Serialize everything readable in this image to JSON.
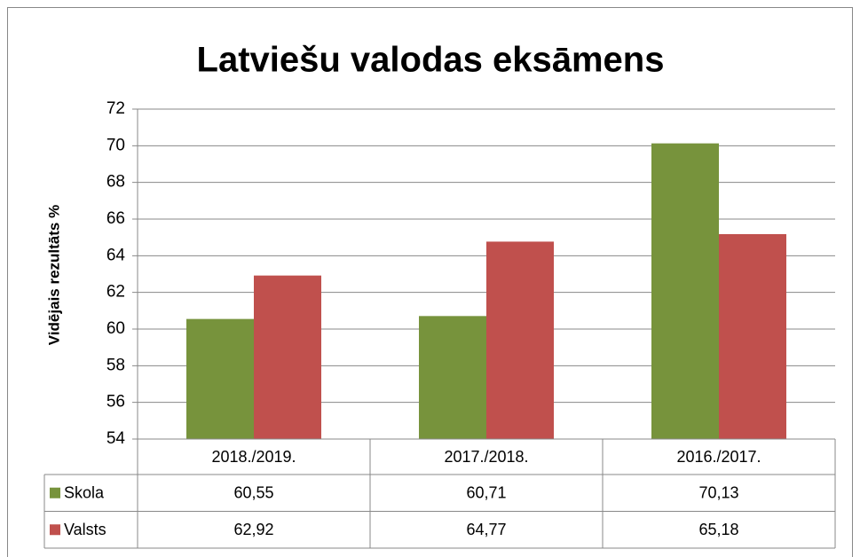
{
  "chart_data": {
    "type": "bar",
    "title": "Latviešu valodas eksāmens",
    "y_label": "Vidējais rezultāts %",
    "categories": [
      "2018./2019.",
      "2017./2018.",
      "2016./2017."
    ],
    "series": [
      {
        "name": "Skola",
        "color": "#77933c",
        "values": [
          60.55,
          60.71,
          70.13
        ],
        "value_labels": [
          "60,55",
          "60,71",
          "70,13"
        ]
      },
      {
        "name": "Valsts",
        "color": "#c0504d",
        "values": [
          62.92,
          64.77,
          65.18
        ],
        "value_labels": [
          "62,92",
          "64,77",
          "65,18"
        ]
      }
    ],
    "ylim": [
      54,
      72
    ],
    "yticks": [
      54,
      56,
      58,
      60,
      62,
      64,
      66,
      68,
      70,
      72
    ],
    "grid": true,
    "data_table": true
  }
}
